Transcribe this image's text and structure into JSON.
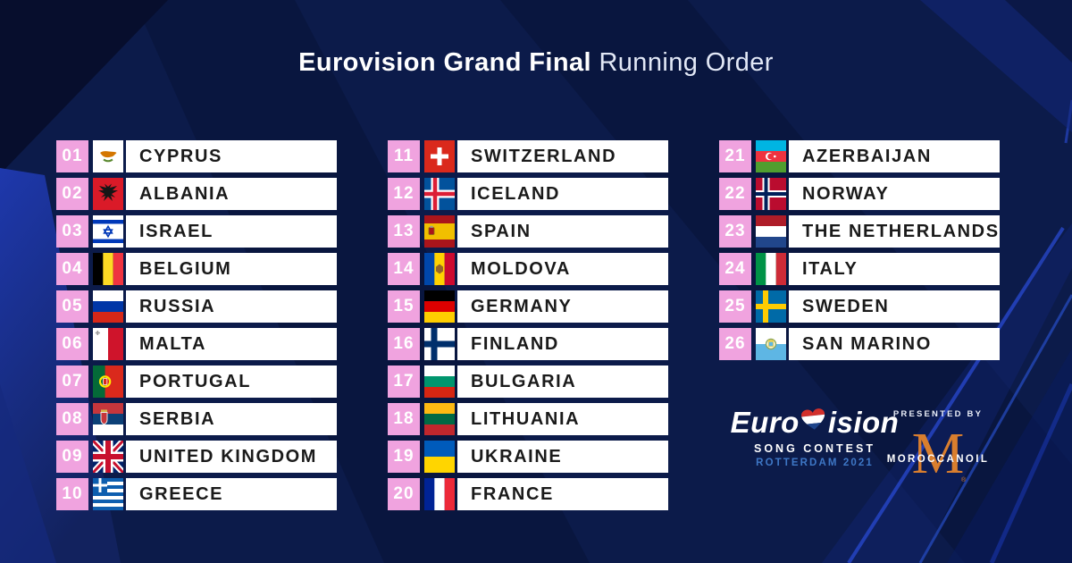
{
  "title": {
    "bold": "Eurovision Grand Final",
    "regular": "Running Order"
  },
  "columns": [
    {
      "entries": [
        {
          "number": "01",
          "country": "CYPRUS",
          "flag": "cyprus"
        },
        {
          "number": "02",
          "country": "ALBANIA",
          "flag": "albania"
        },
        {
          "number": "03",
          "country": "ISRAEL",
          "flag": "israel"
        },
        {
          "number": "04",
          "country": "BELGIUM",
          "flag": "belgium"
        },
        {
          "number": "05",
          "country": "RUSSIA",
          "flag": "russia"
        },
        {
          "number": "06",
          "country": "MALTA",
          "flag": "malta"
        },
        {
          "number": "07",
          "country": "PORTUGAL",
          "flag": "portugal"
        },
        {
          "number": "08",
          "country": "SERBIA",
          "flag": "serbia"
        },
        {
          "number": "09",
          "country": "UNITED KINGDOM",
          "flag": "uk"
        },
        {
          "number": "10",
          "country": "GREECE",
          "flag": "greece"
        }
      ]
    },
    {
      "entries": [
        {
          "number": "11",
          "country": "SWITZERLAND",
          "flag": "switzerland"
        },
        {
          "number": "12",
          "country": "ICELAND",
          "flag": "iceland"
        },
        {
          "number": "13",
          "country": "SPAIN",
          "flag": "spain"
        },
        {
          "number": "14",
          "country": "MOLDOVA",
          "flag": "moldova"
        },
        {
          "number": "15",
          "country": "GERMANY",
          "flag": "germany"
        },
        {
          "number": "16",
          "country": "FINLAND",
          "flag": "finland"
        },
        {
          "number": "17",
          "country": "BULGARIA",
          "flag": "bulgaria"
        },
        {
          "number": "18",
          "country": "LITHUANIA",
          "flag": "lithuania"
        },
        {
          "number": "19",
          "country": "UKRAINE",
          "flag": "ukraine"
        },
        {
          "number": "20",
          "country": "FRANCE",
          "flag": "france"
        }
      ]
    },
    {
      "entries": [
        {
          "number": "21",
          "country": "AZERBAIJAN",
          "flag": "azerbaijan"
        },
        {
          "number": "22",
          "country": "NORWAY",
          "flag": "norway"
        },
        {
          "number": "23",
          "country": "THE NETHERLANDS",
          "flag": "netherlands"
        },
        {
          "number": "24",
          "country": "ITALY",
          "flag": "italy"
        },
        {
          "number": "25",
          "country": "SWEDEN",
          "flag": "sweden"
        },
        {
          "number": "26",
          "country": "SAN MARINO",
          "flag": "sanmarino"
        }
      ]
    }
  ],
  "footer": {
    "logo_pre": "Euro",
    "logo_post": "ision",
    "heart_icon": "dutch-flag-heart-icon",
    "song_contest": "SONG CONTEST",
    "rotterdam": "ROTTERDAM 2021",
    "presented_by": "PRESENTED BY",
    "sponsor_mark": "M",
    "sponsor_name": "MOROCCANOIL",
    "registered_mark": "®"
  },
  "colors": {
    "background_navy": "#0C1B4A",
    "dark_navy": "#070E2D",
    "bright_blue": "#1E38AC",
    "badge_pink": "#F0A3DF",
    "box_white": "#FFFFFF",
    "text_black": "#1A1A1A",
    "rotterdam_blue": "#3E77C6",
    "moroccanoil_orange": "#D97E2E"
  }
}
